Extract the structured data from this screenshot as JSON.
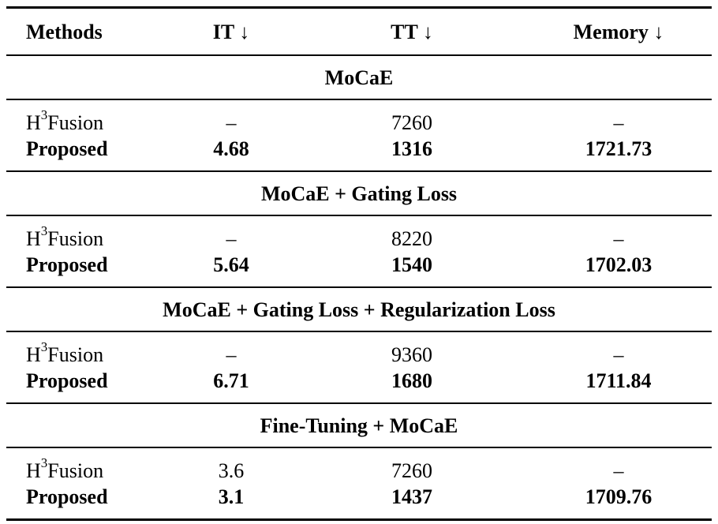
{
  "table": {
    "headers": [
      "Methods",
      "IT ↓",
      "TT ↓",
      "Memory ↓"
    ],
    "sections": [
      {
        "title": "MoCaE",
        "rows": [
          {
            "method_base": "H",
            "method_sup": "3",
            "method_rest": "Fusion",
            "it": "–",
            "tt": "7260",
            "memory": "–",
            "bold": false
          },
          {
            "method": "Proposed",
            "it": "4.68",
            "tt": "1316",
            "memory": "1721.73",
            "bold": true
          }
        ]
      },
      {
        "title": "MoCaE + Gating Loss",
        "rows": [
          {
            "method_base": "H",
            "method_sup": "3",
            "method_rest": "Fusion",
            "it": "–",
            "tt": "8220",
            "memory": "–",
            "bold": false
          },
          {
            "method": "Proposed",
            "it": "5.64",
            "tt": "1540",
            "memory": "1702.03",
            "bold": true
          }
        ]
      },
      {
        "title": "MoCaE + Gating Loss + Regularization Loss",
        "rows": [
          {
            "method_base": "H",
            "method_sup": "3",
            "method_rest": "Fusion",
            "it": "–",
            "tt": "9360",
            "memory": "–",
            "bold": false
          },
          {
            "method": "Proposed",
            "it": "6.71",
            "tt": "1680",
            "memory": "1711.84",
            "bold": true
          }
        ]
      },
      {
        "title": "Fine-Tuning + MoCaE",
        "rows": [
          {
            "method_base": "H",
            "method_sup": "3",
            "method_rest": "Fusion",
            "it": "3.6",
            "tt": "7260",
            "memory": "–",
            "bold": false
          },
          {
            "method": "Proposed",
            "it": "3.1",
            "tt": "1437",
            "memory": "1709.76",
            "bold": true
          }
        ]
      }
    ]
  }
}
